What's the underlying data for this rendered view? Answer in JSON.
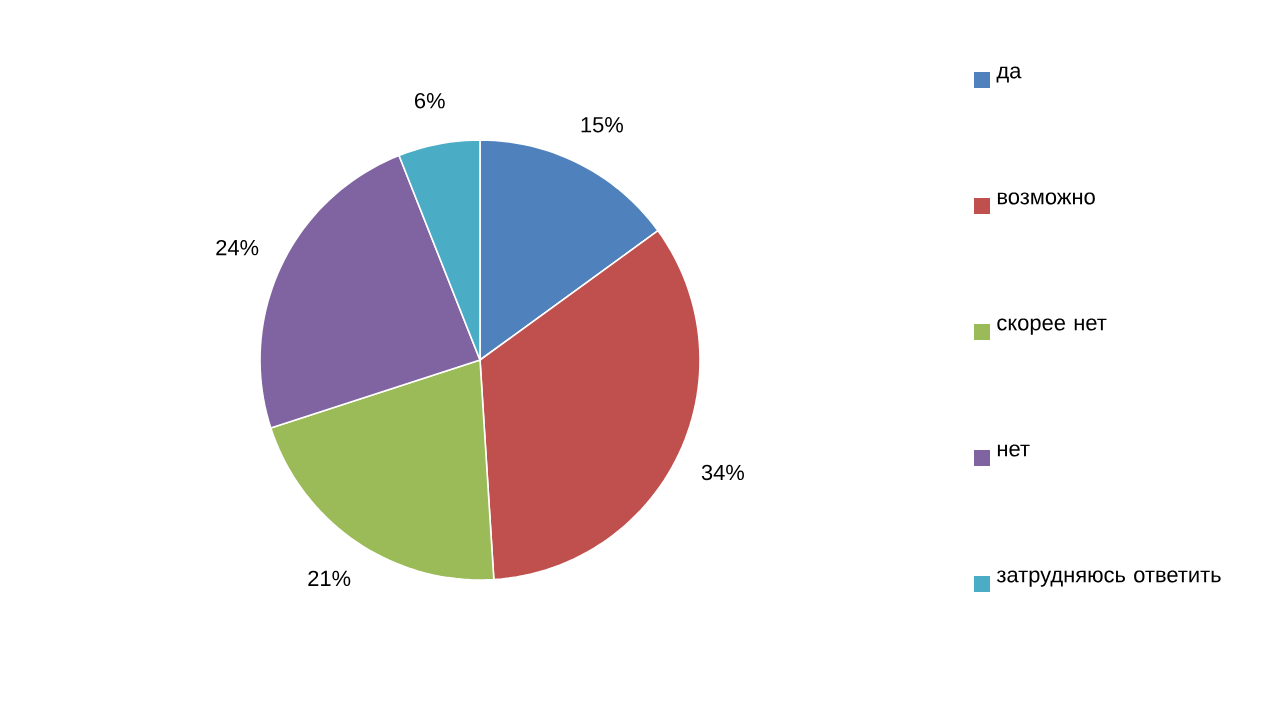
{
  "chart_data": {
    "type": "pie",
    "categories": [
      "да",
      "возможно",
      "скорее нет",
      "нет",
      "затрудняюсь ответить"
    ],
    "values": [
      15,
      34,
      21,
      24,
      6
    ],
    "value_labels": [
      "15%",
      "34%",
      "21%",
      "24%",
      "6%"
    ],
    "colors": [
      "#4f81bd",
      "#c0504d",
      "#9bbb59",
      "#8064a2",
      "#4bacc6"
    ],
    "legend": "right"
  }
}
